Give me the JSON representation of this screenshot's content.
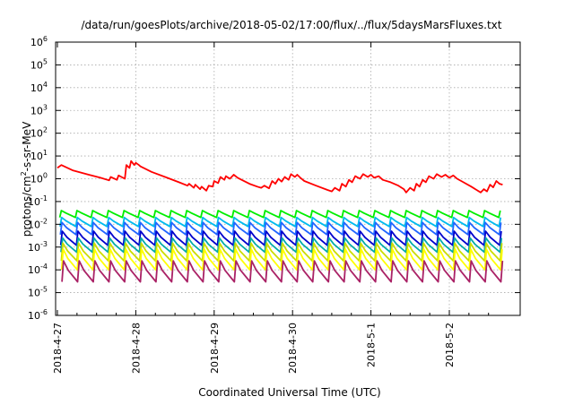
{
  "chart_data": {
    "type": "line",
    "title": "/data/run/goesPlots/archive/2018-05-02/17:00/flux/../flux/5daysMarsFluxes.txt",
    "xlabel": "Coordinated Universal Time (UTC)",
    "ylabel_parts": {
      "pre": "protons/cm",
      "sup": "2",
      "post": "-s-sr-MeV"
    },
    "y_scale": "log",
    "ylim": [
      1e-06,
      1000000.0
    ],
    "xlim": [
      "2018-04-27 00:00",
      "2018-05-02 17:00"
    ],
    "grid": true,
    "legend": "none",
    "x_ticks": [
      {
        "label": "2018-4-27",
        "day": 0
      },
      {
        "label": "2018-4-28",
        "day": 1
      },
      {
        "label": "2018-4-29",
        "day": 2
      },
      {
        "label": "2018-4-30",
        "day": 3
      },
      {
        "label": "2018-5-1",
        "day": 4
      },
      {
        "label": "2018-5-2",
        "day": 5
      }
    ],
    "y_ticks": [
      {
        "base": "10",
        "exp": "-6",
        "value": 1e-06
      },
      {
        "base": "10",
        "exp": "-5",
        "value": 1e-05
      },
      {
        "base": "10",
        "exp": "-4",
        "value": 0.0001
      },
      {
        "base": "10",
        "exp": "-3",
        "value": 0.001
      },
      {
        "base": "10",
        "exp": "-2",
        "value": 0.01
      },
      {
        "base": "10",
        "exp": "-1",
        "value": 0.1
      },
      {
        "base": "10",
        "exp": "0",
        "value": 1
      },
      {
        "base": "10",
        "exp": "1",
        "value": 10
      },
      {
        "base": "10",
        "exp": "2",
        "value": 100
      },
      {
        "base": "10",
        "exp": "3",
        "value": 1000
      },
      {
        "base": "10",
        "exp": "4",
        "value": 10000
      },
      {
        "base": "10",
        "exp": "5",
        "value": 100000
      },
      {
        "base": "10",
        "exp": "6",
        "value": 1000000
      }
    ],
    "red_series": {
      "color": "#ff0000",
      "points": [
        [
          0.0,
          3.0
        ],
        [
          0.05,
          4.0
        ],
        [
          0.2,
          2.3
        ],
        [
          0.4,
          1.5
        ],
        [
          0.55,
          1.1
        ],
        [
          0.66,
          0.85
        ],
        [
          0.68,
          1.2
        ],
        [
          0.76,
          0.9
        ],
        [
          0.78,
          1.4
        ],
        [
          0.86,
          1.0
        ],
        [
          0.88,
          4.0
        ],
        [
          0.92,
          3.0
        ],
        [
          0.94,
          6.0
        ],
        [
          0.98,
          4.0
        ],
        [
          1.0,
          5.0
        ],
        [
          1.04,
          4.0
        ],
        [
          1.06,
          3.5
        ],
        [
          1.2,
          2.0
        ],
        [
          1.4,
          1.1
        ],
        [
          1.55,
          0.7
        ],
        [
          1.66,
          0.5
        ],
        [
          1.68,
          0.6
        ],
        [
          1.74,
          0.4
        ],
        [
          1.76,
          0.55
        ],
        [
          1.82,
          0.35
        ],
        [
          1.84,
          0.45
        ],
        [
          1.9,
          0.3
        ],
        [
          1.93,
          0.5
        ],
        [
          1.98,
          0.45
        ],
        [
          2.0,
          0.8
        ],
        [
          2.05,
          0.65
        ],
        [
          2.08,
          1.2
        ],
        [
          2.13,
          0.9
        ],
        [
          2.15,
          1.3
        ],
        [
          2.2,
          1.0
        ],
        [
          2.25,
          1.5
        ],
        [
          2.3,
          1.1
        ],
        [
          2.35,
          0.9
        ],
        [
          2.45,
          0.6
        ],
        [
          2.55,
          0.45
        ],
        [
          2.6,
          0.4
        ],
        [
          2.64,
          0.5
        ],
        [
          2.7,
          0.38
        ],
        [
          2.74,
          0.8
        ],
        [
          2.78,
          0.6
        ],
        [
          2.82,
          1.0
        ],
        [
          2.86,
          0.75
        ],
        [
          2.9,
          1.2
        ],
        [
          2.95,
          0.9
        ],
        [
          2.98,
          1.6
        ],
        [
          3.03,
          1.2
        ],
        [
          3.06,
          1.5
        ],
        [
          3.1,
          1.1
        ],
        [
          3.15,
          0.8
        ],
        [
          3.3,
          0.5
        ],
        [
          3.45,
          0.32
        ],
        [
          3.5,
          0.28
        ],
        [
          3.54,
          0.4
        ],
        [
          3.6,
          0.3
        ],
        [
          3.63,
          0.6
        ],
        [
          3.68,
          0.45
        ],
        [
          3.72,
          0.9
        ],
        [
          3.76,
          0.7
        ],
        [
          3.8,
          1.3
        ],
        [
          3.86,
          1.0
        ],
        [
          3.9,
          1.6
        ],
        [
          3.96,
          1.2
        ],
        [
          4.0,
          1.5
        ],
        [
          4.04,
          1.1
        ],
        [
          4.1,
          1.3
        ],
        [
          4.15,
          0.9
        ],
        [
          4.25,
          0.7
        ],
        [
          4.35,
          0.5
        ],
        [
          4.42,
          0.35
        ],
        [
          4.45,
          0.25
        ],
        [
          4.5,
          0.4
        ],
        [
          4.55,
          0.3
        ],
        [
          4.58,
          0.6
        ],
        [
          4.62,
          0.45
        ],
        [
          4.66,
          0.9
        ],
        [
          4.7,
          0.7
        ],
        [
          4.74,
          1.3
        ],
        [
          4.8,
          1.0
        ],
        [
          4.84,
          1.6
        ],
        [
          4.9,
          1.2
        ],
        [
          4.95,
          1.5
        ],
        [
          5.0,
          1.1
        ],
        [
          5.05,
          1.4
        ],
        [
          5.1,
          1.0
        ],
        [
          5.18,
          0.7
        ],
        [
          5.28,
          0.45
        ],
        [
          5.35,
          0.32
        ],
        [
          5.4,
          0.25
        ],
        [
          5.44,
          0.35
        ],
        [
          5.48,
          0.28
        ],
        [
          5.52,
          0.55
        ],
        [
          5.56,
          0.42
        ],
        [
          5.6,
          0.8
        ],
        [
          5.64,
          0.6
        ],
        [
          5.68,
          0.55
        ]
      ]
    },
    "periodic_series": [
      {
        "color": "#00ee00",
        "peak": 0.04,
        "trough": 0.02
      },
      {
        "color": "#00bbee",
        "peak": 0.02,
        "trough": 0.008
      },
      {
        "color": "#2266ff",
        "peak": 0.012,
        "trough": 0.0035
      },
      {
        "color": "#0000cc",
        "peak": 0.005,
        "trough": 0.0012
      },
      {
        "color": "#00aaaa",
        "peak": 0.0025,
        "trough": 0.0006
      },
      {
        "color": "#ccdd00",
        "peak": 0.0015,
        "trough": 0.00025
      },
      {
        "color": "#ffff00",
        "peak": 0.0008,
        "trough": 0.0001
      },
      {
        "color": "#aa2266",
        "peak": 0.00025,
        "trough": 3e-05
      }
    ]
  }
}
